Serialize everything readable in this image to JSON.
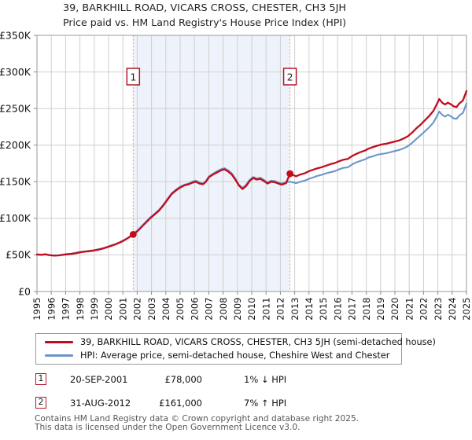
{
  "title": {
    "line1": "39, BARKHILL ROAD, VICARS CROSS, CHESTER, CH3 5JH",
    "line2": "Price paid vs. HM Land Registry's House Price Index (HPI)"
  },
  "chart_data": {
    "type": "line",
    "xlim": [
      1995,
      2025
    ],
    "ylim": [
      0,
      350
    ],
    "grid": true,
    "x_ticks": [
      1995,
      1996,
      1997,
      1998,
      1999,
      2000,
      2001,
      2002,
      2003,
      2004,
      2005,
      2006,
      2007,
      2008,
      2009,
      2010,
      2011,
      2012,
      2013,
      2014,
      2015,
      2016,
      2017,
      2018,
      2019,
      2020,
      2021,
      2022,
      2023,
      2024,
      2025
    ],
    "y_ticks": [
      {
        "label": "£350K",
        "value": 350
      },
      {
        "label": "£300K",
        "value": 300
      },
      {
        "label": "£250K",
        "value": 250
      },
      {
        "label": "£200K",
        "value": 200
      },
      {
        "label": "£150K",
        "value": 150
      },
      {
        "label": "£100K",
        "value": 100
      },
      {
        "label": "£50K",
        "value": 50
      },
      {
        "label": "£0",
        "value": 0
      }
    ],
    "y_unit": "GBP thousands",
    "shaded_region": {
      "from_year": 2001.72,
      "to_year": 2012.67,
      "color": "#eef2fa"
    },
    "marker_line_color": "#f09595",
    "marker_box_border": "#b01828",
    "sale_markers": [
      {
        "label": "1",
        "year": 2001.72,
        "value": 78
      },
      {
        "label": "2",
        "year": 2012.67,
        "value": 161
      }
    ],
    "series": [
      {
        "name": "39, BARKHILL ROAD, VICARS CROSS, CHESTER, CH3 5JH (semi-detached house)",
        "color": "#c00d1e",
        "points": [
          [
            1995.0,
            50.5
          ],
          [
            1995.3,
            50.0
          ],
          [
            1995.6,
            50.8
          ],
          [
            1995.9,
            49.5
          ],
          [
            1996.2,
            49.0
          ],
          [
            1996.5,
            49.3
          ],
          [
            1996.8,
            50.0
          ],
          [
            1997.1,
            50.8
          ],
          [
            1997.4,
            51.3
          ],
          [
            1997.7,
            52.2
          ],
          [
            1998.0,
            53.5
          ],
          [
            1998.3,
            54.3
          ],
          [
            1998.6,
            55.0
          ],
          [
            1999.0,
            56.0
          ],
          [
            1999.3,
            57.2
          ],
          [
            1999.6,
            58.6
          ],
          [
            1999.9,
            60.5
          ],
          [
            2000.2,
            62.5
          ],
          [
            2000.5,
            64.5
          ],
          [
            2000.8,
            67.0
          ],
          [
            2001.1,
            70.0
          ],
          [
            2001.4,
            73.5
          ],
          [
            2001.72,
            78.0
          ],
          [
            2002.0,
            82.0
          ],
          [
            2002.3,
            88.0
          ],
          [
            2002.6,
            94.0
          ],
          [
            2002.9,
            100.0
          ],
          [
            2003.2,
            105.0
          ],
          [
            2003.5,
            110.0
          ],
          [
            2003.8,
            117.0
          ],
          [
            2004.1,
            125.0
          ],
          [
            2004.4,
            133.0
          ],
          [
            2004.7,
            138.0
          ],
          [
            2005.0,
            142.0
          ],
          [
            2005.3,
            145.0
          ],
          [
            2005.6,
            146.5
          ],
          [
            2005.9,
            149.0
          ],
          [
            2006.1,
            150.0
          ],
          [
            2006.35,
            147.5
          ],
          [
            2006.6,
            146.5
          ],
          [
            2006.8,
            150.0
          ],
          [
            2007.0,
            156.0
          ],
          [
            2007.3,
            160.0
          ],
          [
            2007.6,
            163.0
          ],
          [
            2007.9,
            166.0
          ],
          [
            2008.1,
            167.0
          ],
          [
            2008.35,
            164.0
          ],
          [
            2008.6,
            160.0
          ],
          [
            2008.85,
            153.0
          ],
          [
            2009.1,
            145.0
          ],
          [
            2009.35,
            140.0
          ],
          [
            2009.6,
            144.0
          ],
          [
            2009.85,
            151.0
          ],
          [
            2010.1,
            155.0
          ],
          [
            2010.35,
            153.0
          ],
          [
            2010.6,
            154.0
          ],
          [
            2010.85,
            151.0
          ],
          [
            2011.1,
            147.5
          ],
          [
            2011.35,
            150.0
          ],
          [
            2011.6,
            149.5
          ],
          [
            2011.85,
            147.5
          ],
          [
            2012.1,
            146.0
          ],
          [
            2012.4,
            148.0
          ],
          [
            2012.67,
            161.0
          ],
          [
            2012.9,
            159.0
          ],
          [
            2013.1,
            157.5
          ],
          [
            2013.4,
            160.0
          ],
          [
            2013.7,
            161.5
          ],
          [
            2014.0,
            164.5
          ],
          [
            2014.3,
            166.5
          ],
          [
            2014.6,
            168.5
          ],
          [
            2014.9,
            170.0
          ],
          [
            2015.2,
            172.0
          ],
          [
            2015.5,
            174.0
          ],
          [
            2015.8,
            175.5
          ],
          [
            2016.1,
            178.0
          ],
          [
            2016.4,
            180.0
          ],
          [
            2016.7,
            181.0
          ],
          [
            2017.0,
            185.0
          ],
          [
            2017.3,
            188.0
          ],
          [
            2017.6,
            190.5
          ],
          [
            2017.9,
            192.5
          ],
          [
            2018.2,
            195.5
          ],
          [
            2018.5,
            197.5
          ],
          [
            2018.8,
            199.5
          ],
          [
            2019.1,
            201.0
          ],
          [
            2019.4,
            202.0
          ],
          [
            2019.7,
            203.5
          ],
          [
            2020.0,
            205.0
          ],
          [
            2020.3,
            206.5
          ],
          [
            2020.6,
            209.0
          ],
          [
            2020.9,
            212.0
          ],
          [
            2021.2,
            217.0
          ],
          [
            2021.5,
            223.0
          ],
          [
            2021.8,
            228.0
          ],
          [
            2022.1,
            234.0
          ],
          [
            2022.4,
            240.0
          ],
          [
            2022.7,
            247.0
          ],
          [
            2022.9,
            255.0
          ],
          [
            2023.1,
            263.0
          ],
          [
            2023.3,
            258.0
          ],
          [
            2023.5,
            255.5
          ],
          [
            2023.7,
            258.0
          ],
          [
            2023.9,
            256.0
          ],
          [
            2024.1,
            253.0
          ],
          [
            2024.3,
            252.0
          ],
          [
            2024.5,
            257.0
          ],
          [
            2024.75,
            261.0
          ],
          [
            2025.0,
            274.0
          ]
        ]
      },
      {
        "name": "HPI: Average price, semi-detached house, Cheshire West and Chester",
        "color": "#6c96c8",
        "points": [
          [
            1995.0,
            51.0
          ],
          [
            1995.3,
            50.3
          ],
          [
            1995.6,
            51.0
          ],
          [
            1995.9,
            49.8
          ],
          [
            1996.2,
            49.3
          ],
          [
            1996.5,
            49.6
          ],
          [
            1996.8,
            50.3
          ],
          [
            1997.1,
            51.2
          ],
          [
            1997.4,
            51.8
          ],
          [
            1997.7,
            52.8
          ],
          [
            1998.0,
            54.0
          ],
          [
            1998.3,
            54.8
          ],
          [
            1998.6,
            55.5
          ],
          [
            1999.0,
            56.5
          ],
          [
            1999.3,
            57.8
          ],
          [
            1999.6,
            59.2
          ],
          [
            1999.9,
            61.0
          ],
          [
            2000.2,
            63.0
          ],
          [
            2000.5,
            65.0
          ],
          [
            2000.8,
            67.5
          ],
          [
            2001.1,
            70.5
          ],
          [
            2001.4,
            74.0
          ],
          [
            2001.72,
            79.0
          ],
          [
            2002.0,
            83.0
          ],
          [
            2002.3,
            89.0
          ],
          [
            2002.6,
            95.0
          ],
          [
            2002.9,
            101.0
          ],
          [
            2003.2,
            106.0
          ],
          [
            2003.5,
            111.0
          ],
          [
            2003.8,
            118.0
          ],
          [
            2004.1,
            126.0
          ],
          [
            2004.4,
            134.0
          ],
          [
            2004.7,
            139.0
          ],
          [
            2005.0,
            143.0
          ],
          [
            2005.3,
            146.0
          ],
          [
            2005.6,
            147.5
          ],
          [
            2005.9,
            150.5
          ],
          [
            2006.1,
            151.5
          ],
          [
            2006.35,
            149.0
          ],
          [
            2006.6,
            147.5
          ],
          [
            2006.8,
            151.0
          ],
          [
            2007.0,
            157.0
          ],
          [
            2007.3,
            161.0
          ],
          [
            2007.6,
            164.5
          ],
          [
            2007.9,
            167.5
          ],
          [
            2008.1,
            168.5
          ],
          [
            2008.35,
            165.5
          ],
          [
            2008.6,
            161.5
          ],
          [
            2008.85,
            154.5
          ],
          [
            2009.1,
            146.0
          ],
          [
            2009.35,
            141.5
          ],
          [
            2009.6,
            145.5
          ],
          [
            2009.85,
            152.5
          ],
          [
            2010.1,
            156.5
          ],
          [
            2010.35,
            154.5
          ],
          [
            2010.6,
            155.5
          ],
          [
            2010.85,
            152.5
          ],
          [
            2011.1,
            149.0
          ],
          [
            2011.35,
            151.5
          ],
          [
            2011.6,
            151.0
          ],
          [
            2011.85,
            149.0
          ],
          [
            2012.1,
            147.5
          ],
          [
            2012.4,
            149.5
          ],
          [
            2012.67,
            150.0
          ],
          [
            2012.9,
            149.0
          ],
          [
            2013.1,
            148.0
          ],
          [
            2013.4,
            150.0
          ],
          [
            2013.7,
            151.5
          ],
          [
            2014.0,
            154.0
          ],
          [
            2014.3,
            156.0
          ],
          [
            2014.6,
            158.0
          ],
          [
            2014.9,
            159.5
          ],
          [
            2015.2,
            161.5
          ],
          [
            2015.5,
            163.0
          ],
          [
            2015.8,
            164.5
          ],
          [
            2016.1,
            167.0
          ],
          [
            2016.4,
            169.0
          ],
          [
            2016.7,
            169.5
          ],
          [
            2017.0,
            173.5
          ],
          [
            2017.3,
            176.5
          ],
          [
            2017.6,
            178.5
          ],
          [
            2017.9,
            180.5
          ],
          [
            2018.2,
            183.5
          ],
          [
            2018.5,
            185.0
          ],
          [
            2018.8,
            187.0
          ],
          [
            2019.1,
            188.0
          ],
          [
            2019.4,
            189.0
          ],
          [
            2019.7,
            190.5
          ],
          [
            2020.0,
            192.0
          ],
          [
            2020.3,
            193.5
          ],
          [
            2020.6,
            195.5
          ],
          [
            2020.9,
            198.5
          ],
          [
            2021.2,
            203.0
          ],
          [
            2021.5,
            208.5
          ],
          [
            2021.8,
            213.5
          ],
          [
            2022.1,
            219.0
          ],
          [
            2022.4,
            224.5
          ],
          [
            2022.7,
            231.0
          ],
          [
            2022.9,
            238.5
          ],
          [
            2023.1,
            246.0
          ],
          [
            2023.3,
            241.5
          ],
          [
            2023.5,
            239.0
          ],
          [
            2023.7,
            241.5
          ],
          [
            2023.9,
            239.5
          ],
          [
            2024.1,
            236.5
          ],
          [
            2024.3,
            236.0
          ],
          [
            2024.5,
            240.5
          ],
          [
            2024.75,
            244.0
          ],
          [
            2025.0,
            257.0
          ]
        ]
      }
    ]
  },
  "legend": {
    "items": [
      {
        "label": "39, BARKHILL ROAD, VICARS CROSS, CHESTER, CH3 5JH (semi-detached house)",
        "color": "#c00d1e"
      },
      {
        "label": "HPI: Average price, semi-detached house, Cheshire West and Chester",
        "color": "#6c96c8"
      }
    ]
  },
  "sales": [
    {
      "num": "1",
      "date": "20-SEP-2001",
      "price": "£78,000",
      "hpi_delta": "1% ↓ HPI"
    },
    {
      "num": "2",
      "date": "31-AUG-2012",
      "price": "£161,000",
      "hpi_delta": "7% ↑ HPI"
    }
  ],
  "footer": {
    "line1": "Contains HM Land Registry data © Crown copyright and database right 2025.",
    "line2": "This data is licensed under the Open Government Licence v3.0."
  }
}
